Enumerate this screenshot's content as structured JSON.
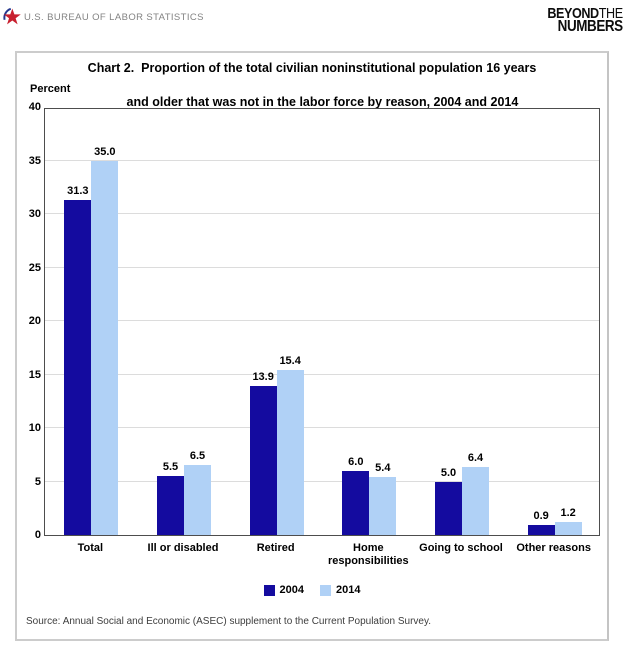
{
  "header": {
    "agency": "U.S. BUREAU OF LABOR STATISTICS",
    "logo": {
      "line1_bold": "BEYOND",
      "line1_thin": "THE",
      "line2": "NUMBERS"
    }
  },
  "chart_data": {
    "type": "bar",
    "title_line1": "Chart 2.  Proportion of the total civilian noninstitutional population 16 years",
    "title_line2": "and older that was not in the labor force by reason, 2004 and 2014",
    "ylabel": "Percent",
    "ylim": [
      0,
      40
    ],
    "ytick_step": 5,
    "grid": true,
    "legend_position": "bottom",
    "categories": [
      "Total",
      "Ill or disabled",
      "Retired",
      "Home responsibilities",
      "Going to school",
      "Other reasons"
    ],
    "series": [
      {
        "name": "2004",
        "color": "#140b9f",
        "values": [
          31.3,
          5.5,
          13.9,
          6.0,
          5.0,
          0.9
        ]
      },
      {
        "name": "2014",
        "color": "#b0d1f6",
        "values": [
          35.0,
          6.5,
          15.4,
          5.4,
          6.4,
          1.2
        ]
      }
    ]
  },
  "source_note": "Source: Annual Social and Economic (ASEC) supplement to the Current Population Survey.",
  "colors": {
    "bar_2004": "#140b9f",
    "bar_2014": "#b0d1f6",
    "gridline": "#dcdcdc",
    "plot_border": "#4d4d4d",
    "box_border": "#cccccc",
    "header_text": "#838383",
    "star_red": "#c8202f",
    "star_blue": "#26388f"
  }
}
